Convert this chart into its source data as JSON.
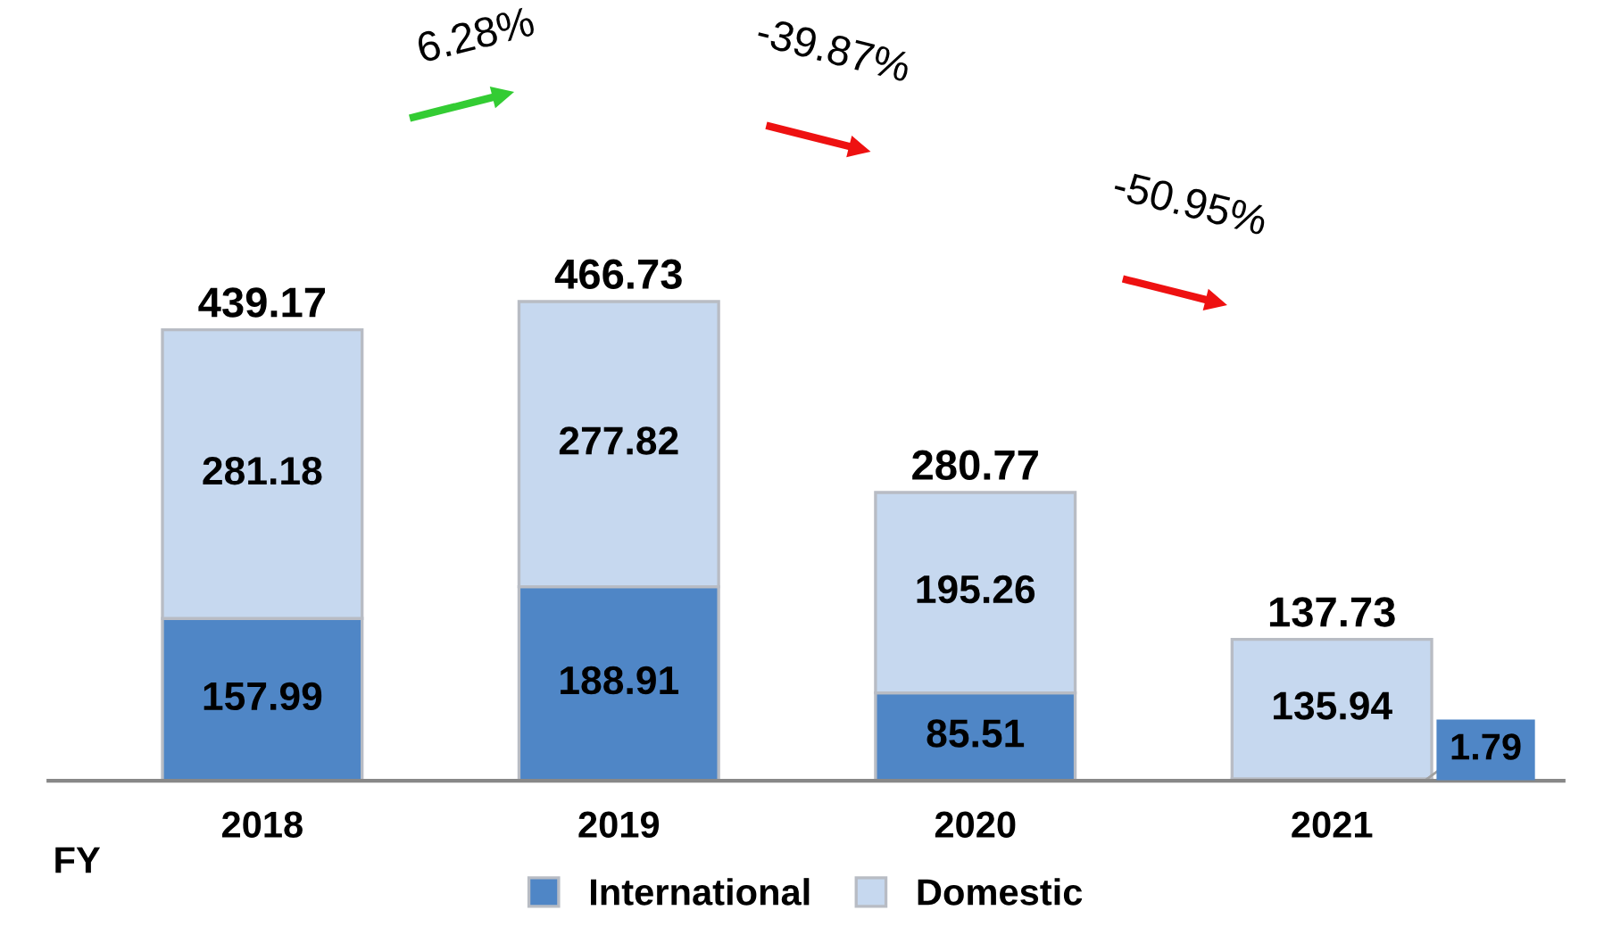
{
  "chart_data": {
    "type": "bar",
    "stacked": true,
    "categories": [
      "2018",
      "2019",
      "2020",
      "2021"
    ],
    "xlabel": "FY",
    "series": [
      {
        "name": "International",
        "color": "#4f86c6",
        "values": [
          157.99,
          188.91,
          85.51,
          1.79
        ]
      },
      {
        "name": "Domestic",
        "color": "#c6d8ef",
        "values": [
          281.18,
          277.82,
          195.26,
          135.94
        ]
      }
    ],
    "data_labels": true,
    "totals": [
      "439.17",
      "466.73",
      "280.77",
      "137.73"
    ],
    "annotations": [
      "6.28%",
      "-39.87%",
      "-50.95%"
    ],
    "legend": "bottom",
    "grid": false
  }
}
